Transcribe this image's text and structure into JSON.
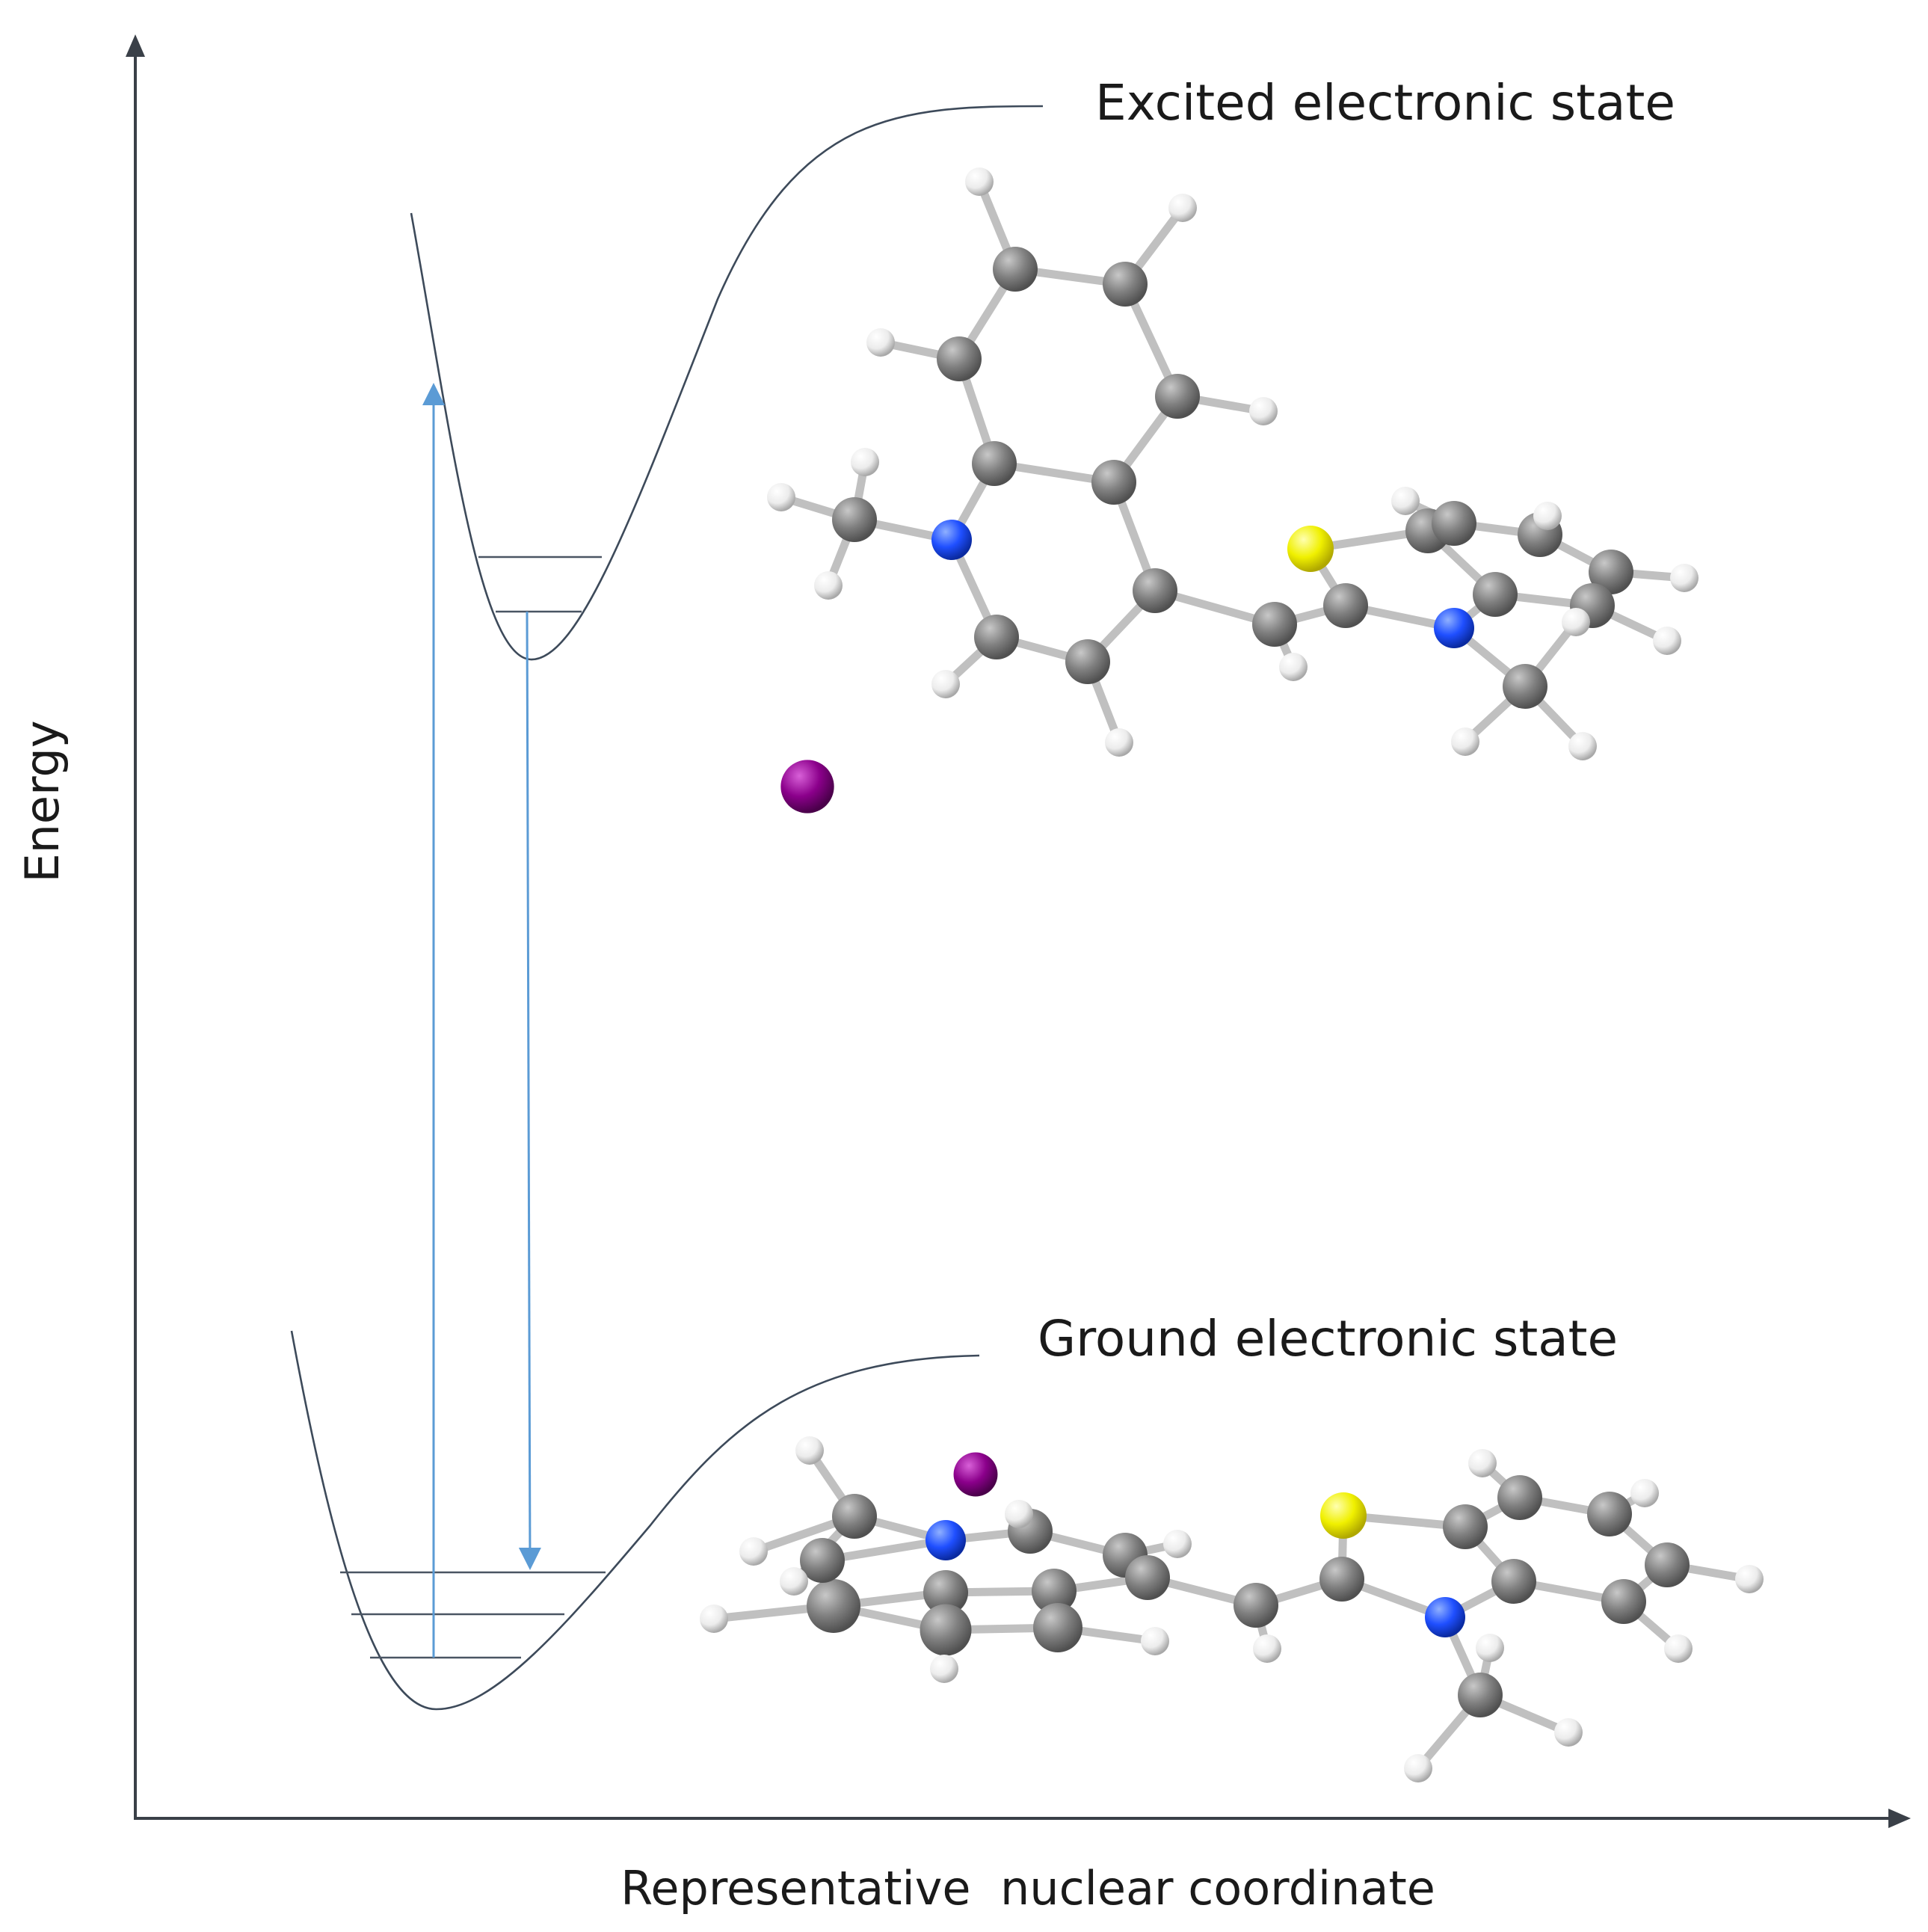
{
  "diagram": {
    "y_axis_label": "Energy",
    "x_axis_label": "Representative  nuclear coordinate",
    "excited_state_label": "Excited electronic state",
    "ground_state_label": "Ground electronic state"
  },
  "structure": {
    "excited_state_vibrational_levels": 2,
    "ground_state_vibrational_levels": 3,
    "transitions": [
      "absorption",
      "emission"
    ]
  },
  "colors": {
    "transition_arrow": "#5b9bd5",
    "carbon": "#808080",
    "hydrogen": "#f2f2f2",
    "nitrogen": "#1f4fff",
    "sulfur": "#f0f000",
    "counterion": "#8b008b",
    "bond": "#c0c0c0"
  }
}
